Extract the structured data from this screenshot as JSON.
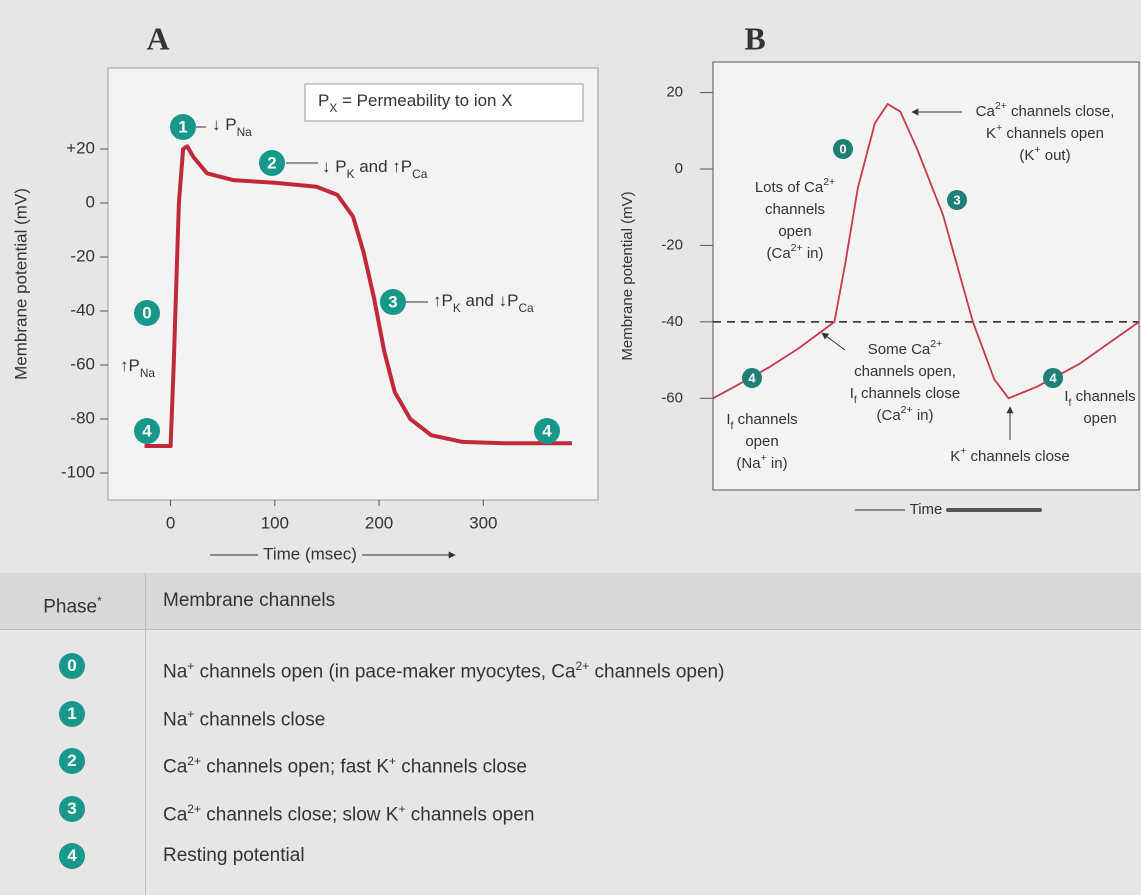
{
  "chart_data": [
    {
      "type": "line",
      "panel": "A",
      "ylabel": "Membrane potential (mV)",
      "xlabel": "Time (msec)",
      "xlim": [
        -60,
        410
      ],
      "ylim": [
        -110,
        50
      ],
      "xticks": [
        0,
        100,
        200,
        300
      ],
      "yticks": [
        {
          "value": 20,
          "label": "+20"
        },
        0,
        -20,
        -40,
        -60,
        -80,
        -100
      ],
      "color": "#c0283c",
      "x": [
        -25,
        0,
        3,
        8,
        12,
        16,
        22,
        35,
        60,
        100,
        140,
        160,
        175,
        185,
        195,
        205,
        215,
        230,
        250,
        280,
        320,
        385
      ],
      "values": [
        -90,
        -90,
        -60,
        0,
        20,
        21,
        17,
        11,
        8.5,
        7.5,
        6,
        3,
        -5,
        -18,
        -35,
        -55,
        -70,
        -80,
        -86,
        -88.5,
        -89,
        -89
      ],
      "markers": [
        "1",
        "2",
        "3",
        "0",
        "4",
        "4"
      ],
      "annotations": [
        [
          [
            "P",
            {
              "sub": "X"
            },
            " = Permeability to ion X"
          ]
        ],
        [
          [
            "↓ P",
            {
              "sub": "Na"
            }
          ]
        ],
        [
          [
            "↓ P",
            {
              "sub": "K"
            },
            " and ↑P",
            {
              "sub": "Ca"
            }
          ]
        ],
        [
          [
            "↑P",
            {
              "sub": "K"
            },
            " and ↓P",
            {
              "sub": "Ca"
            }
          ]
        ],
        [
          [
            "↑P",
            {
              "sub": "Na"
            }
          ]
        ]
      ]
    },
    {
      "type": "line",
      "panel": "B",
      "ylabel": "Membrane potential (mV)",
      "xlabel": "Time",
      "xlim": [
        0,
        100
      ],
      "ylim": [
        -84,
        28
      ],
      "yticks": [
        20,
        0,
        -20,
        -40,
        -60
      ],
      "threshold": -40,
      "color": "#c8394a",
      "x": [
        0,
        5,
        13,
        20,
        28.5,
        31,
        34,
        38,
        41,
        44,
        48,
        54,
        61,
        66,
        69.4,
        76,
        86,
        100
      ],
      "values": [
        -60,
        -57,
        -52,
        -47,
        -40,
        -25,
        -5,
        12,
        17,
        15,
        5,
        -12,
        -40,
        -55,
        -60,
        -57,
        -51,
        -40
      ],
      "markers": [
        "0",
        "3",
        "4",
        "4"
      ],
      "annotations": [
        [
          [
            "Ca",
            {
              "sup": "2+"
            },
            " channels close,"
          ],
          [
            "K",
            {
              "sup": "+"
            },
            " channels open"
          ],
          [
            "(K",
            {
              "sup": "+"
            },
            " out)"
          ]
        ],
        [
          [
            "Lots of Ca",
            {
              "sup": "2+"
            }
          ],
          [
            "channels"
          ],
          [
            "open"
          ],
          [
            "(Ca",
            {
              "sup": "2+"
            },
            " in)"
          ]
        ],
        [
          [
            "Some Ca",
            {
              "sup": "2+"
            }
          ],
          [
            "channels open,"
          ],
          [
            "I",
            {
              "sub": "f"
            },
            " channels close"
          ],
          [
            "(Ca",
            {
              "sup": "2+"
            },
            " in)"
          ]
        ],
        [
          [
            "I",
            {
              "sub": "f"
            },
            " channels"
          ],
          [
            "open"
          ],
          [
            "(Na",
            {
              "sup": "+"
            },
            " in)"
          ]
        ],
        [
          [
            "K",
            {
              "sup": "+"
            },
            " channels close"
          ]
        ],
        [
          [
            "I",
            {
              "sub": "f"
            },
            " channels"
          ],
          [
            "open"
          ]
        ]
      ]
    }
  ],
  "table": {
    "header": [
      [
        "Phase",
        {
          "sup": "*"
        }
      ],
      [
        "Membrane channels"
      ]
    ],
    "rows": [
      {
        "phase": "0",
        "text": [
          "Na",
          {
            "sup": "+"
          },
          " channels open (in pace-maker myocytes, Ca",
          {
            "sup": "2+"
          },
          " channels open)"
        ]
      },
      {
        "phase": "1",
        "text": [
          "Na",
          {
            "sup": "+"
          },
          " channels close"
        ]
      },
      {
        "phase": "2",
        "text": [
          "Ca",
          {
            "sup": "2+"
          },
          " channels open; fast K",
          {
            "sup": "+"
          },
          " channels close"
        ]
      },
      {
        "phase": "3",
        "text": [
          "Ca",
          {
            "sup": "2+"
          },
          " channels close; slow K",
          {
            "sup": "+"
          },
          " channels open"
        ]
      },
      {
        "phase": "4",
        "text": [
          "Resting potential"
        ]
      }
    ]
  }
}
